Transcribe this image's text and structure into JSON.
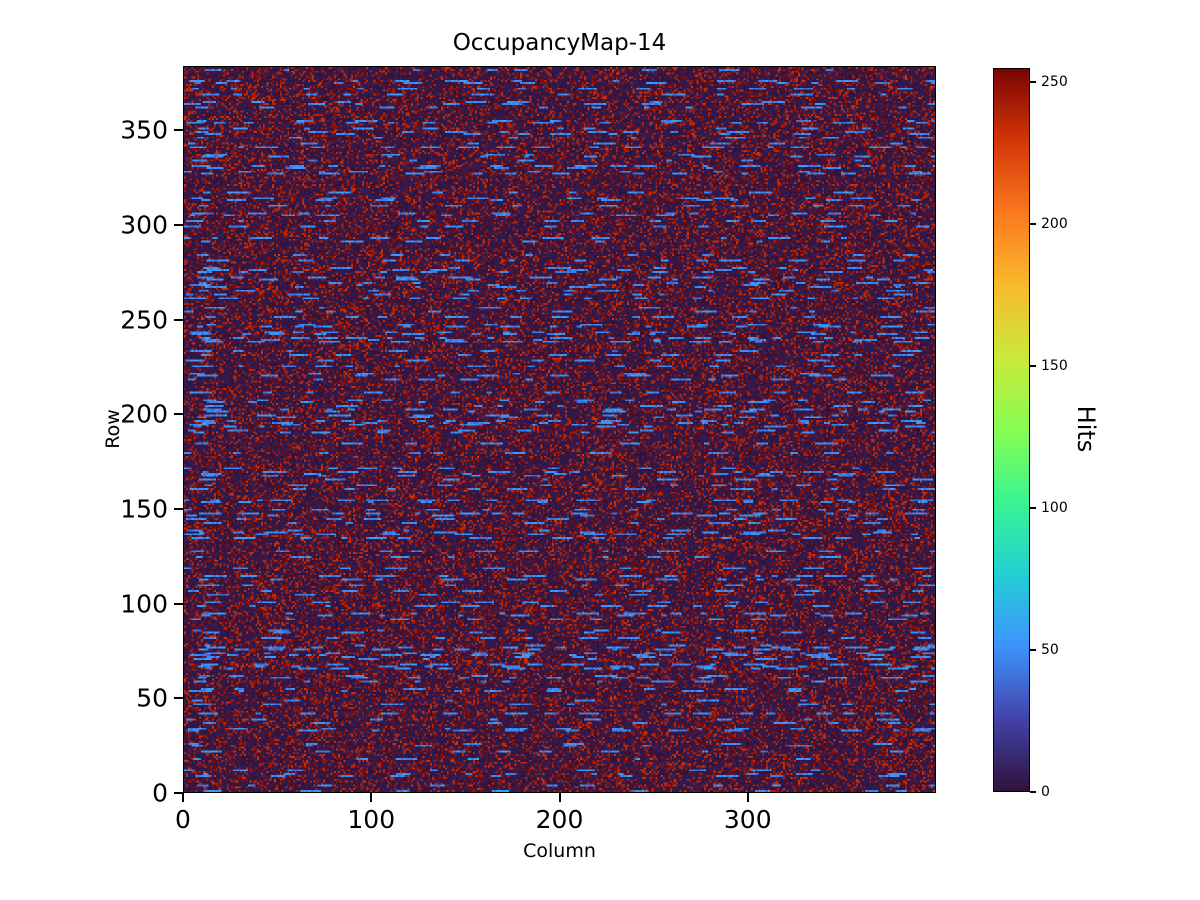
{
  "chart_data": {
    "type": "heatmap",
    "title": "OccupancyMap-14",
    "xlabel": "Column",
    "ylabel": "Row",
    "x_range": [
      0,
      400
    ],
    "y_range": [
      0,
      384
    ],
    "x_ticks": [
      0,
      100,
      200,
      300
    ],
    "y_ticks": [
      0,
      50,
      100,
      150,
      200,
      250,
      300,
      350
    ],
    "colorbar": {
      "label": "Hits",
      "ticks": [
        0,
        50,
        100,
        150,
        200,
        250
      ],
      "vmin": 0,
      "vmax": 255
    },
    "colormap": "turbo",
    "colormap_stops": [
      {
        "t": 0.0,
        "c": "#30123b"
      },
      {
        "t": 0.1,
        "c": "#4243a8"
      },
      {
        "t": 0.2,
        "c": "#3e92fe"
      },
      {
        "t": 0.3,
        "c": "#21cfd3"
      },
      {
        "t": 0.4,
        "c": "#38f491"
      },
      {
        "t": 0.5,
        "c": "#87fd52"
      },
      {
        "t": 0.6,
        "c": "#c9e939"
      },
      {
        "t": 0.7,
        "c": "#f8ba2c"
      },
      {
        "t": 0.8,
        "c": "#fb791e"
      },
      {
        "t": 0.9,
        "c": "#d33608"
      },
      {
        "t": 1.0,
        "c": "#7a0403"
      }
    ],
    "pattern": {
      "description": "Dark low-occupancy background with dense dark-red hot-pixel speckle and horizontal dashed light-blue streak rows",
      "seed": 14,
      "background_value_range": [
        0,
        6
      ],
      "hot_pixel_probability": 0.28,
      "hot_value_range": [
        230,
        255
      ],
      "streak_row_probability": 0.38,
      "streak_value_range": [
        35,
        60
      ],
      "dash_length_range": [
        3,
        12
      ],
      "gap_length_range": [
        4,
        30
      ]
    }
  }
}
